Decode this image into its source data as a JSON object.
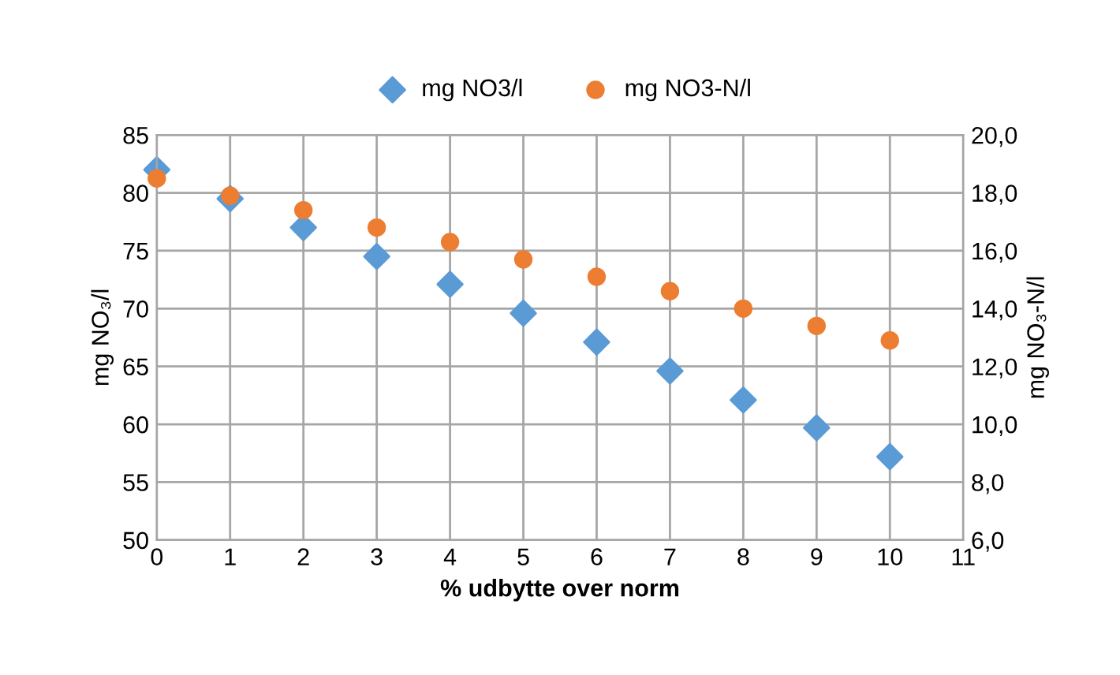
{
  "chart_data": {
    "type": "scatter",
    "xlabel": "% udbytte over norm",
    "ylabel": "mg NO₃/l",
    "y2label": "mg NO₃-N/l",
    "x": [
      0,
      1,
      2,
      3,
      4,
      5,
      6,
      7,
      8,
      9,
      10
    ],
    "series": [
      {
        "name": "mg NO3/l",
        "color": "#5b9bd5",
        "marker": "diamond",
        "values": [
          82.0,
          79.5,
          77.0,
          74.5,
          72.1,
          69.6,
          67.1,
          64.6,
          62.1,
          59.7,
          57.2
        ]
      },
      {
        "name": "mg NO3-N/l",
        "color": "#ed7d31",
        "marker": "circle",
        "axis": "y2",
        "values": [
          18.5,
          17.9,
          17.4,
          16.8,
          16.3,
          15.7,
          15.1,
          14.6,
          14.0,
          13.4,
          12.9
        ]
      }
    ],
    "xlim": [
      0,
      11
    ],
    "xticks": [
      0,
      1,
      2,
      3,
      4,
      5,
      6,
      7,
      8,
      9,
      10,
      11
    ],
    "ylim": [
      50,
      85
    ],
    "yticks": [
      50,
      55,
      60,
      65,
      70,
      75,
      80,
      85
    ],
    "y2lim": [
      6,
      20
    ],
    "y2ticks": [
      {
        "value": 6,
        "label": "6,0"
      },
      {
        "value": 8,
        "label": "8,0"
      },
      {
        "value": 10,
        "label": "10,0"
      },
      {
        "value": 12,
        "label": "12,0"
      },
      {
        "value": 14,
        "label": "14,0"
      },
      {
        "value": 16,
        "label": "16,0"
      },
      {
        "value": 18,
        "label": "18,0"
      },
      {
        "value": 20,
        "label": "20,0"
      }
    ],
    "grid": true,
    "legend": "top"
  }
}
